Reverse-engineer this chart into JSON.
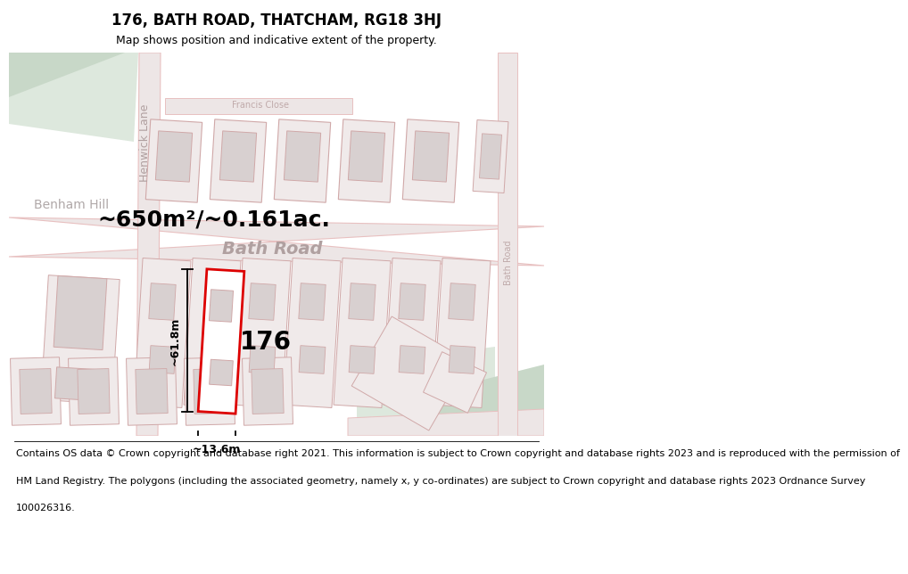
{
  "title": "176, BATH ROAD, THATCHAM, RG18 3HJ",
  "subtitle": "Map shows position and indicative extent of the property.",
  "area_text": "~650m²/~0.161ac.",
  "dim_width": "~13.6m",
  "dim_height": "~61.8m",
  "property_label": "176",
  "footer_lines": [
    "Contains OS data © Crown copyright and database right 2021. This information is subject to Crown copyright and database rights 2023 and is reproduced with the permission of",
    "HM Land Registry. The polygons (including the associated geometry, namely x, y co-ordinates) are subject to Crown copyright and database rights 2023 Ordnance Survey",
    "100026316."
  ],
  "map_bg": "#f5efef",
  "road_color": "#e8c0c0",
  "building_fill": "#d8d0d0",
  "building_ec": "#d0a8a8",
  "green_fill": "#dde8dd",
  "white_fill": "#ffffff",
  "property_ec": "#dd0000",
  "title_fontsize": 12,
  "subtitle_fontsize": 9,
  "footer_fontsize": 8,
  "area_fontsize": 18,
  "label_fontsize": 20,
  "road_label_color": "#b0a0a0",
  "road_label_size": 14,
  "small_road_label_size": 9
}
